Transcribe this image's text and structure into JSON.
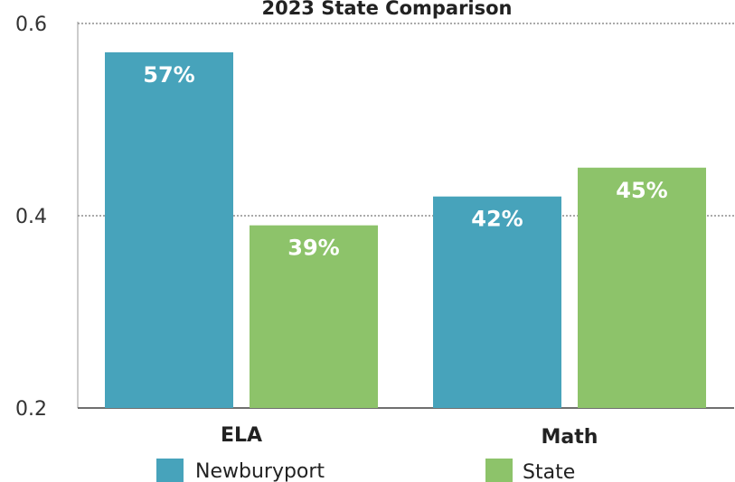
{
  "chart_data": {
    "type": "bar",
    "title": "2023 State Comparison",
    "categories": [
      "ELA",
      "Math"
    ],
    "series": [
      {
        "name": "Newburyport",
        "values": [
          0.57,
          0.42
        ],
        "labels": [
          "57%",
          "42%"
        ],
        "color": "#47a3bb"
      },
      {
        "name": "State",
        "values": [
          0.39,
          0.45
        ],
        "labels": [
          "39%",
          "45%"
        ],
        "color": "#8dc36a"
      }
    ],
    "y_ticks": [
      {
        "value": 0.2,
        "label": "0.2"
      },
      {
        "value": 0.4,
        "label": "0.4"
      },
      {
        "value": 0.6,
        "label": "0.6"
      }
    ],
    "ylim": [
      0.2,
      0.6
    ],
    "grid": "dotted horizontal",
    "legend_position": "bottom"
  }
}
